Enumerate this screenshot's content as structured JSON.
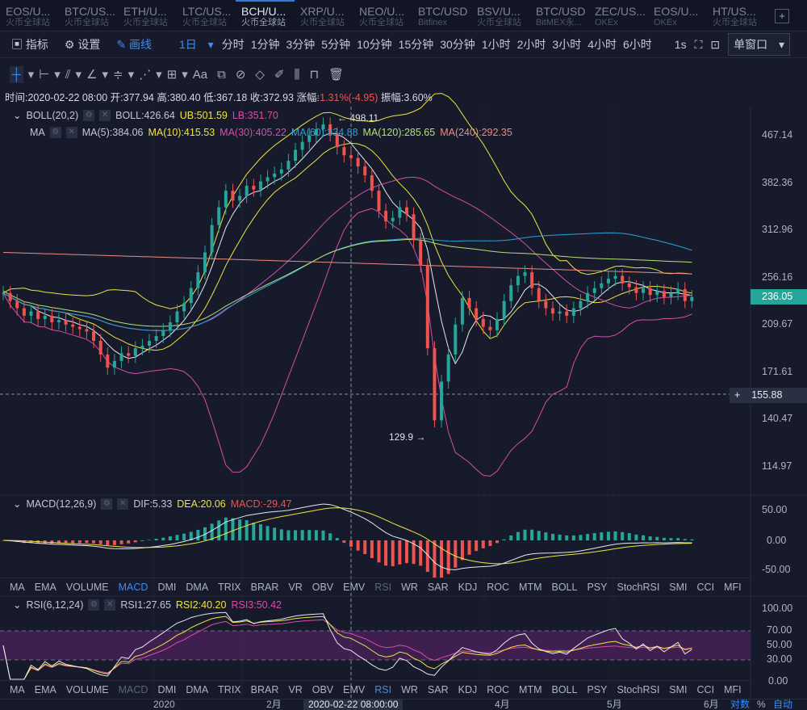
{
  "tabs": [
    {
      "pair": "EOS/U...",
      "exchange": "火币全球站"
    },
    {
      "pair": "BTC/US...",
      "exchange": "火币全球站"
    },
    {
      "pair": "ETH/U...",
      "exchange": "火币全球站"
    },
    {
      "pair": "LTC/US...",
      "exchange": "火币全球站"
    },
    {
      "pair": "BCH/U...",
      "exchange": "火币全球站"
    },
    {
      "pair": "XRP/U...",
      "exchange": "火币全球站"
    },
    {
      "pair": "NEO/U...",
      "exchange": "火币全球站"
    },
    {
      "pair": "BTC/USD",
      "exchange": "Bitfinex"
    },
    {
      "pair": "BSV/U...",
      "exchange": "火币全球站"
    },
    {
      "pair": "BTC/USD",
      "exchange": "BitMEX永..."
    },
    {
      "pair": "ZEC/US...",
      "exchange": "OKEx"
    },
    {
      "pair": "EOS/U...",
      "exchange": "OKEx"
    },
    {
      "pair": "HT/US...",
      "exchange": "火币全球站"
    }
  ],
  "add_tab": "+",
  "toolbar": {
    "indicators": "指标",
    "settings": "设置",
    "draw": "画线",
    "period": "1日",
    "intervals": [
      "分时",
      "1分钟",
      "3分钟",
      "5分钟",
      "10分钟",
      "15分钟",
      "30分钟",
      "1小时",
      "2小时",
      "3小时",
      "4小时",
      "6小时"
    ],
    "refresh": "1s",
    "window_mode": "单窗口"
  },
  "draw_tools": {
    "text": "Aa"
  },
  "info": {
    "time": "时间:2020-02-22 08:00",
    "open": "开:377.94",
    "high": "高:380.40",
    "low": "低:367.18",
    "close": "收:372.93",
    "change_label": "涨幅:",
    "change": "-1.31%(-4.95)",
    "amp": "振幅:3.60%"
  },
  "boll": {
    "name": "BOLL(20,2)",
    "boll": "BOLL:426.64",
    "ub": "UB:501.59",
    "lb": "LB:351.70"
  },
  "ma": {
    "name": "MA",
    "ma5": "MA(5):384.06",
    "ma10": "MA(10):415.53",
    "ma30": "MA(30):405.22",
    "ma60": "MA(60):334.88",
    "ma120": "MA(120):285.65",
    "ma240": "MA(240):292.35"
  },
  "price_axis": [
    "467.14",
    "382.36",
    "312.96",
    "256.16",
    "209.67",
    "171.61",
    "140.47",
    "114.97"
  ],
  "last_price": "236.05",
  "cursor_price": "155.88",
  "high_mark": "498.11",
  "low_mark": "129.9",
  "macd": {
    "name": "MACD(12,26,9)",
    "dif": "DIF:5.33",
    "dea": "DEA:20.06",
    "macd": "MACD:-29.47",
    "axis": [
      "50.00",
      "0.00",
      "-50.00"
    ]
  },
  "indicators": [
    "MA",
    "EMA",
    "VOLUME",
    "MACD",
    "DMI",
    "DMA",
    "TRIX",
    "BRAR",
    "VR",
    "OBV",
    "EMV",
    "RSI",
    "WR",
    "SAR",
    "KDJ",
    "ROC",
    "MTM",
    "BOLL",
    "PSY",
    "StochRSI",
    "SMI",
    "CCI",
    "MFI"
  ],
  "rsi": {
    "name": "RSI(6,12,24)",
    "rsi1": "RSI1:27.65",
    "rsi2": "RSI2:40.20",
    "rsi3": "RSI3:50.42",
    "axis": [
      "100.00",
      "70.00",
      "50.00",
      "30.00",
      "0.00"
    ]
  },
  "time_axis": {
    "labels": [
      "2020",
      "2月",
      "4月",
      "5月",
      "6月"
    ],
    "cursor": "2020-02-22 08:00:00",
    "log": "对数",
    "pct": "%",
    "auto": "自动"
  },
  "colors": {
    "up": "#26a69a",
    "down": "#ef5350",
    "yellow": "#f0e442",
    "pink": "#d64ea8",
    "blue": "#2aa3d8",
    "white": "#e8eaf0"
  },
  "chart_data": {
    "type": "candlestick",
    "scale": "log",
    "ylim": [
      114.97,
      467.14
    ],
    "closes": [
      240,
      232,
      225,
      218,
      222,
      215,
      218,
      212,
      214,
      210,
      208,
      206,
      204,
      196,
      185,
      175,
      180,
      186,
      184,
      190,
      192,
      196,
      200,
      205,
      212,
      222,
      230,
      245,
      262,
      285,
      320,
      345,
      370,
      355,
      362,
      378,
      372,
      385,
      392,
      398,
      405,
      420,
      440,
      455,
      468,
      480,
      490,
      470,
      445,
      430,
      425,
      410,
      395,
      370,
      340,
      325,
      330,
      345,
      335,
      300,
      270,
      190,
      140,
      165,
      185,
      210,
      235,
      225,
      215,
      208,
      205,
      215,
      232,
      248,
      258,
      262,
      245,
      232,
      225,
      220,
      222,
      218,
      225,
      232,
      240,
      245,
      250,
      255,
      258,
      250,
      246,
      240,
      245,
      238,
      242,
      236,
      240,
      244,
      232,
      236
    ]
  }
}
